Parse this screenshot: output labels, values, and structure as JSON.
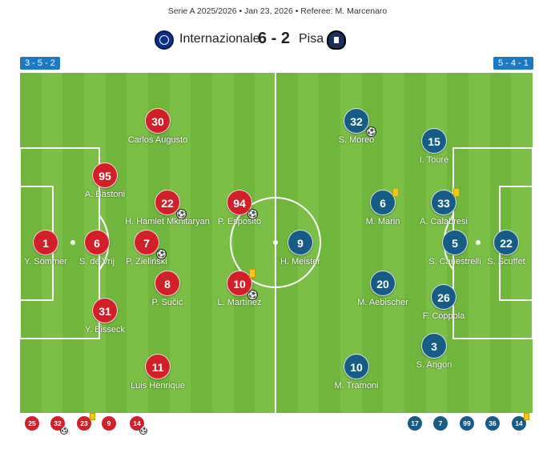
{
  "match": {
    "meta": "Serie A 2025/2026 • Jan 23, 2026 • Referee: M. Marcenaro",
    "home_team": "Internazionale",
    "away_team": "Pisa",
    "score": "6 - 2",
    "home_formation": "3 - 5 - 2",
    "away_formation": "5 - 4 - 1"
  },
  "icons": {
    "home_crest": "inter-crest-icon",
    "away_crest": "pisa-crest-icon",
    "goal": "football-icon",
    "own_goal": "own-goal-football-icon",
    "yellow_card": "yellow-card-icon"
  },
  "colors": {
    "pitch": "#7cbf47",
    "home": "#d1202a",
    "away": "#165c86",
    "formation_badge": "#1d79c2",
    "yellow_card": "#f3c623"
  },
  "home_players": [
    {
      "number": "1",
      "name": "Y. Sommer"
    },
    {
      "number": "6",
      "name": "S. de Vrij"
    },
    {
      "number": "95",
      "name": "A. Bastoni"
    },
    {
      "number": "31",
      "name": "Y. Bisseck"
    },
    {
      "number": "30",
      "name": "Carlos Augusto"
    },
    {
      "number": "22",
      "name": "H. Hamlet Mkhitaryan"
    },
    {
      "number": "7",
      "name": "P. Zieliński"
    },
    {
      "number": "8",
      "name": "P. Sučić"
    },
    {
      "number": "11",
      "name": "Luis Henrique"
    },
    {
      "number": "94",
      "name": "P. Esposito"
    },
    {
      "number": "10",
      "name": "L. Martínez"
    }
  ],
  "away_players": [
    {
      "number": "22",
      "name": "S. Scuffet"
    },
    {
      "number": "5",
      "name": "S. Canestrelli"
    },
    {
      "number": "33",
      "name": "A. Calabresi"
    },
    {
      "number": "26",
      "name": "F. Coppola"
    },
    {
      "number": "15",
      "name": "I. Touré"
    },
    {
      "number": "3",
      "name": "S. Angori"
    },
    {
      "number": "6",
      "name": "M. Marin"
    },
    {
      "number": "20",
      "name": "M. Aebischer"
    },
    {
      "number": "32",
      "name": "S. Moreo"
    },
    {
      "number": "10",
      "name": "M. Tramoni"
    },
    {
      "number": "9",
      "name": "H. Meister"
    }
  ],
  "home_subs": [
    "25",
    "32",
    "23",
    "9",
    "14"
  ],
  "away_subs": [
    "17",
    "7",
    "99",
    "36",
    "14"
  ]
}
